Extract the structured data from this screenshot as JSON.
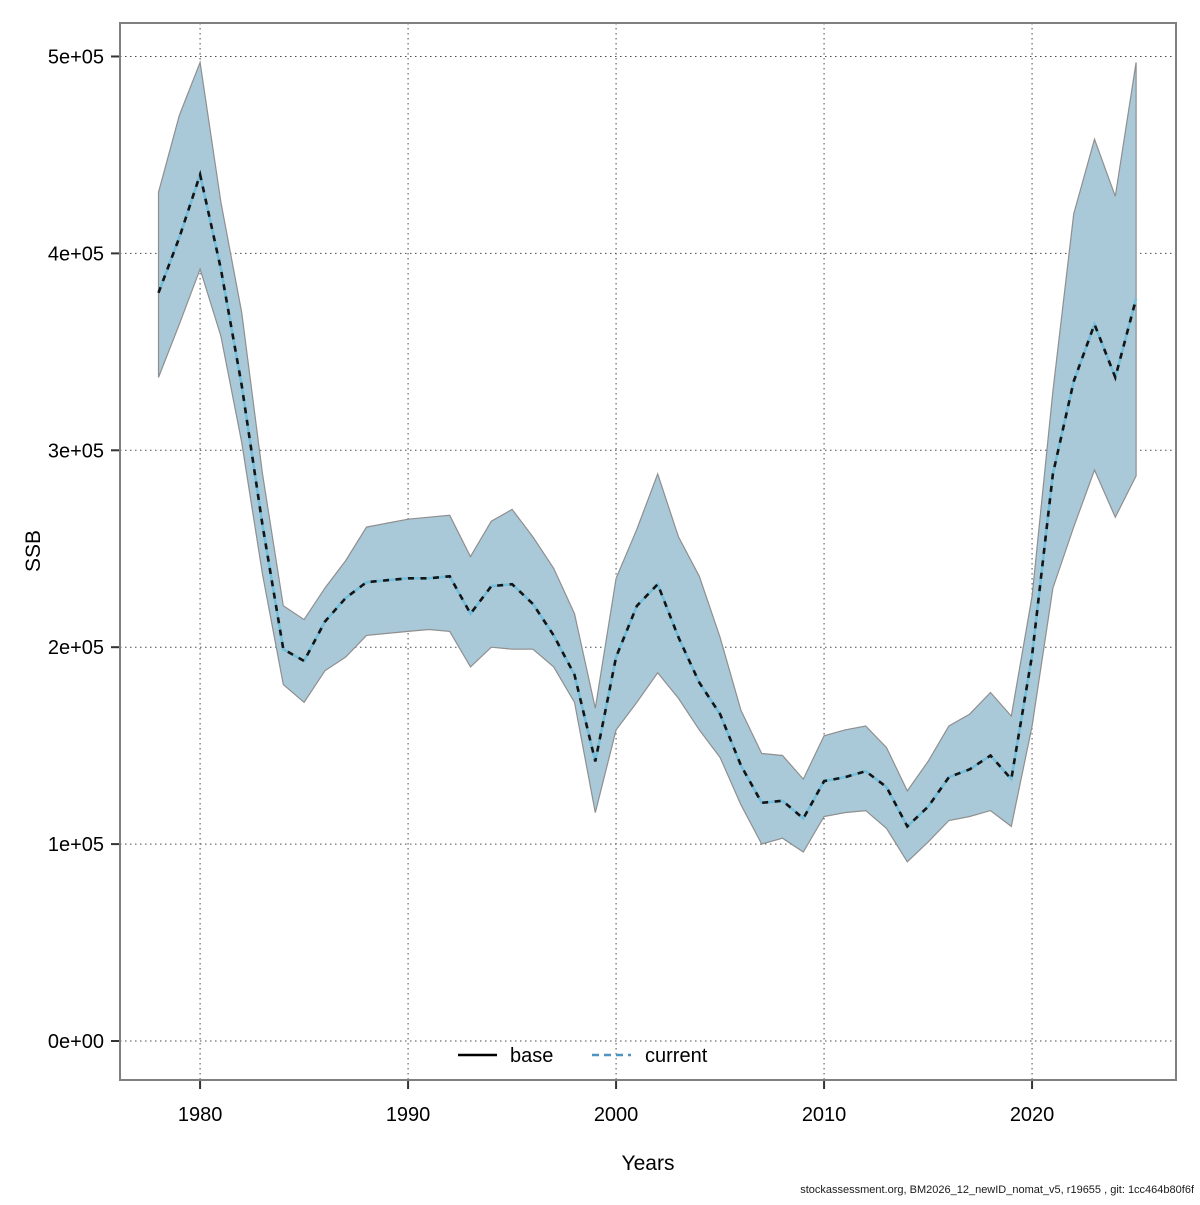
{
  "page": {
    "background": "#ffffff"
  },
  "footer": {
    "text": "stockassessment.org, BM2026_12_newID_nomat_v5, r19655 , git: 1cc464b80f6f"
  },
  "chart_data": {
    "type": "line",
    "title": "",
    "xlabel": "Years",
    "ylabel": "SSB",
    "grid": true,
    "legend": {
      "position": "bottom-center-inside",
      "entries": [
        {
          "label": "base",
          "line": "solid",
          "color": "#000000"
        },
        {
          "label": "current",
          "line": "dashed",
          "color": "#4f94c4"
        }
      ]
    },
    "xlim": [
      1976.15,
      2026.92
    ],
    "ylim": [
      -19800,
      517000
    ],
    "x_ticks": [
      1980,
      1990,
      2000,
      2010,
      2020
    ],
    "y_ticks": [
      {
        "value": 0,
        "label": "0e+00"
      },
      {
        "value": 100000,
        "label": "1e+05"
      },
      {
        "value": 200000,
        "label": "2e+05"
      },
      {
        "value": 300000,
        "label": "3e+05"
      },
      {
        "value": 400000,
        "label": "4e+05"
      },
      {
        "value": 500000,
        "label": "5e+05"
      }
    ],
    "years": [
      1978,
      1979,
      1980,
      1981,
      1982,
      1983,
      1984,
      1985,
      1986,
      1987,
      1988,
      1989,
      1990,
      1991,
      1992,
      1993,
      1994,
      1995,
      1996,
      1997,
      1998,
      1999,
      2000,
      2001,
      2002,
      2003,
      2004,
      2005,
      2006,
      2007,
      2008,
      2009,
      2010,
      2011,
      2012,
      2013,
      2014,
      2015,
      2016,
      2017,
      2018,
      2019,
      2020,
      2021,
      2022,
      2023,
      2024,
      2025
    ],
    "current": [
      380000,
      408000,
      440000,
      392000,
      333000,
      262000,
      199000,
      193000,
      213000,
      225000,
      233000,
      234000,
      235000,
      235000,
      236000,
      217000,
      231000,
      232000,
      222000,
      206000,
      186000,
      142000,
      195000,
      221000,
      232000,
      205000,
      182000,
      166000,
      140000,
      121000,
      122000,
      113000,
      132000,
      134000,
      137000,
      129000,
      109000,
      119000,
      134000,
      138000,
      145000,
      133000,
      196000,
      288000,
      335000,
      364000,
      337000,
      377000
    ],
    "ci_lower": [
      337000,
      364000,
      392000,
      358000,
      304000,
      237000,
      181000,
      172000,
      188000,
      195000,
      206000,
      207000,
      208000,
      209000,
      208000,
      190000,
      200000,
      199000,
      199000,
      190000,
      172000,
      116000,
      158000,
      172000,
      187000,
      174000,
      158000,
      144000,
      120000,
      100000,
      103000,
      96000,
      114000,
      116000,
      117000,
      108000,
      91000,
      101000,
      112000,
      114000,
      117000,
      109000,
      160000,
      230000,
      261000,
      290000,
      266000,
      287000
    ],
    "ci_upper": [
      431000,
      470000,
      497000,
      426000,
      370000,
      288000,
      221000,
      214000,
      230000,
      244000,
      261000,
      263000,
      265000,
      266000,
      267000,
      246000,
      264000,
      270000,
      256000,
      240000,
      217000,
      169000,
      235000,
      260000,
      288000,
      256000,
      236000,
      205000,
      168000,
      146000,
      145000,
      133000,
      155000,
      158000,
      160000,
      149000,
      127000,
      142000,
      160000,
      166000,
      177000,
      165000,
      226000,
      330000,
      420000,
      458000,
      429000,
      497000
    ],
    "style": {
      "band_fill": "#a9c8d8",
      "band_edge": "#8f8f8f",
      "base_line_color": "#74c0dc",
      "current_dash_color": "#141414",
      "legend_base_color": "#000000",
      "legend_current_color": "#4f94c4",
      "grid_color": "#4a4a4a",
      "frame_color": "#7f7f7f",
      "tick_color": "#333333"
    }
  }
}
